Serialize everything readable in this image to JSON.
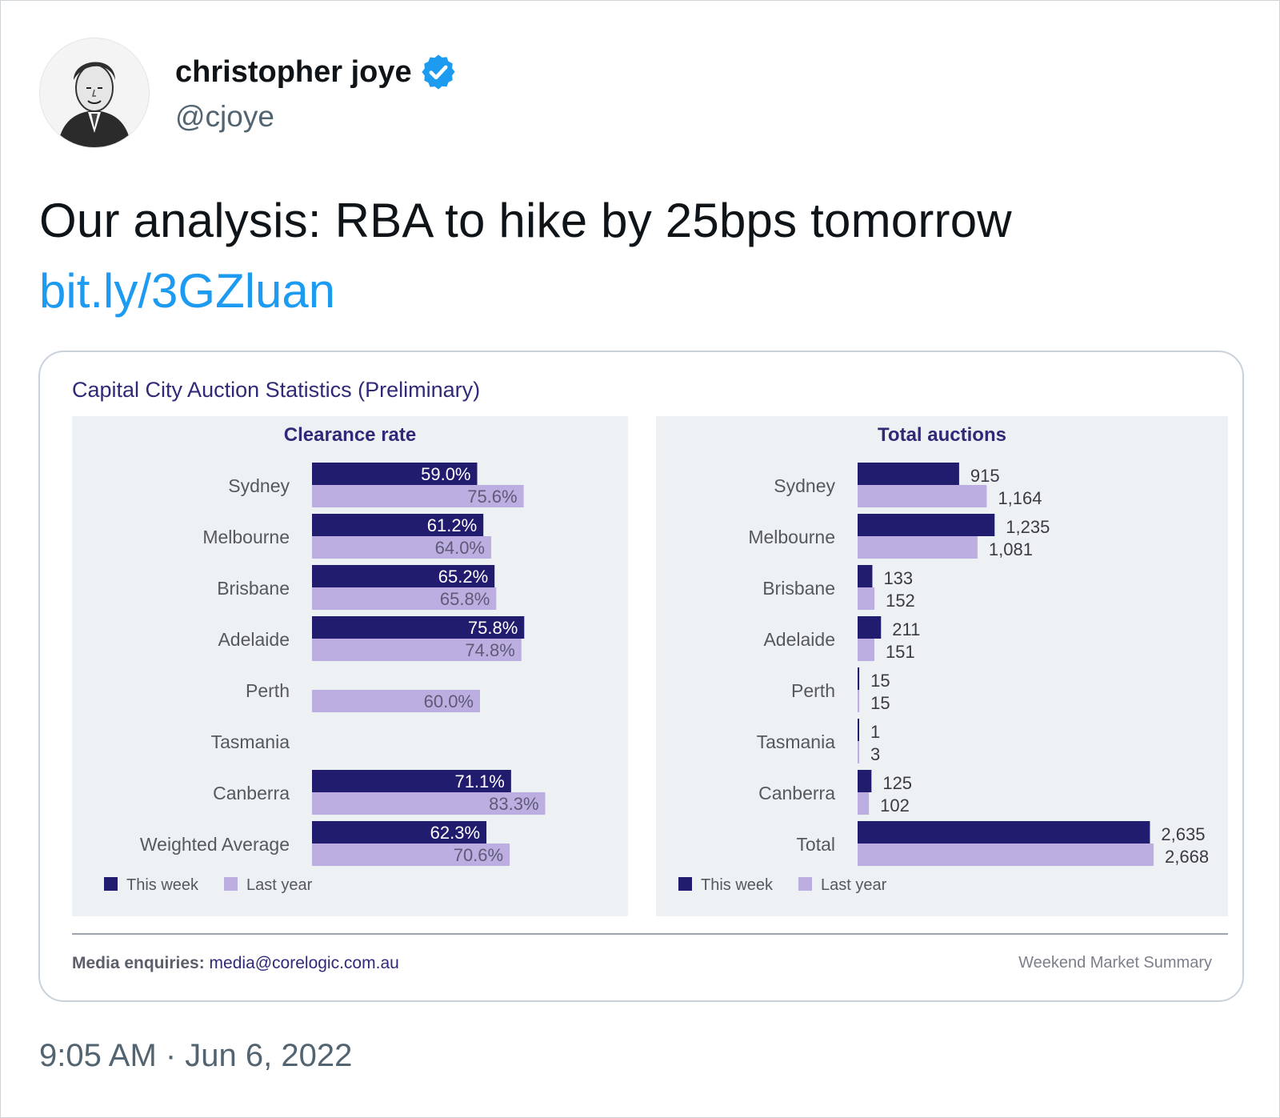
{
  "tweet": {
    "display_name": "christopher joye",
    "handle": "@cjoye",
    "text": "Our analysis: RBA to hike by 25bps tomorrow",
    "link": "bit.ly/3GZluan",
    "timestamp": "9:05 AM · Jun 6, 2022"
  },
  "media": {
    "title": "Capital City Auction Statistics (Preliminary)",
    "footer": {
      "media_label": "Media enquiries:",
      "email": "media@corelogic.com.au",
      "right": "Weekend Market Summary"
    }
  },
  "colors": {
    "this_week": "#221c6e",
    "last_year": "#bcaee0",
    "panel_bg": "#eef1f4",
    "link": "#1d9bf0"
  },
  "chart_data": [
    {
      "type": "bar",
      "orientation": "horizontal",
      "title": "Clearance rate",
      "categories": [
        "Sydney",
        "Melbourne",
        "Brisbane",
        "Adelaide",
        "Perth",
        "Tasmania",
        "Canberra",
        "Weighted Average"
      ],
      "series": [
        {
          "name": "This week",
          "values": [
            59.0,
            61.2,
            65.2,
            75.8,
            null,
            null,
            71.1,
            62.3
          ],
          "labels": [
            "59.0%",
            "61.2%",
            "65.2%",
            "75.8%",
            "",
            "",
            "71.1%",
            "62.3%"
          ]
        },
        {
          "name": "Last year",
          "values": [
            75.6,
            64.0,
            65.8,
            74.8,
            60.0,
            null,
            83.3,
            70.6
          ],
          "labels": [
            "75.6%",
            "64.0%",
            "65.8%",
            "74.8%",
            "60.0%",
            "",
            "83.3%",
            "70.6%"
          ]
        }
      ],
      "xlim": [
        0,
        100
      ],
      "legend": "bottom-left"
    },
    {
      "type": "bar",
      "orientation": "horizontal",
      "title": "Total auctions",
      "categories": [
        "Sydney",
        "Melbourne",
        "Brisbane",
        "Adelaide",
        "Perth",
        "Tasmania",
        "Canberra",
        "Total"
      ],
      "series": [
        {
          "name": "This week",
          "values": [
            915,
            1235,
            133,
            211,
            15,
            1,
            125,
            2635
          ],
          "labels": [
            "915",
            "1,235",
            "133",
            "211",
            "15",
            "1",
            "125",
            "2,635"
          ]
        },
        {
          "name": "Last year",
          "values": [
            1164,
            1081,
            152,
            151,
            15,
            3,
            102,
            2668
          ],
          "labels": [
            "1,164",
            "1,081",
            "152",
            "151",
            "15",
            "3",
            "102",
            "2,668"
          ]
        }
      ],
      "xlim": [
        0,
        2668
      ],
      "legend": "bottom-left"
    }
  ]
}
